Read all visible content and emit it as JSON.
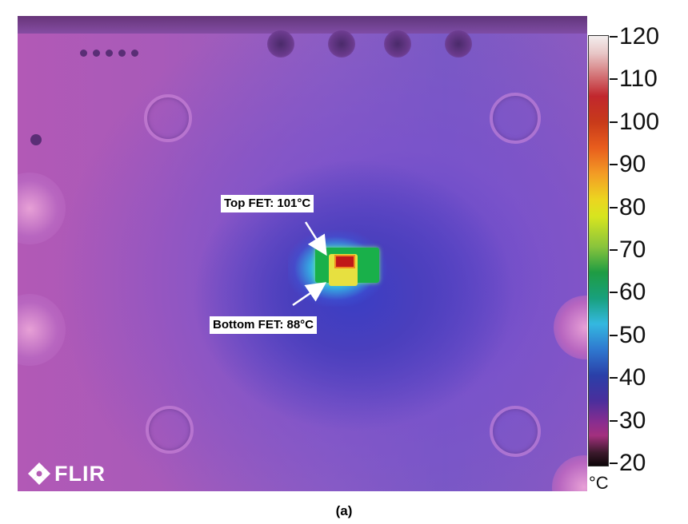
{
  "annotations": {
    "top_fet": "Top FET: 101°C",
    "bottom_fet": "Bottom FET: 88°C"
  },
  "scale": {
    "unit": "°C",
    "labels": [
      "120",
      "110",
      "100",
      "90",
      "80",
      "70",
      "60",
      "50",
      "40",
      "30",
      "20"
    ]
  },
  "logo": {
    "brand": "FLIR"
  },
  "caption": "(a)",
  "colors": {
    "background": "#ffffff",
    "hot": "#c01818",
    "warm": "#e7e040",
    "mid": "#19b04a",
    "cool": "#34b8e6"
  }
}
